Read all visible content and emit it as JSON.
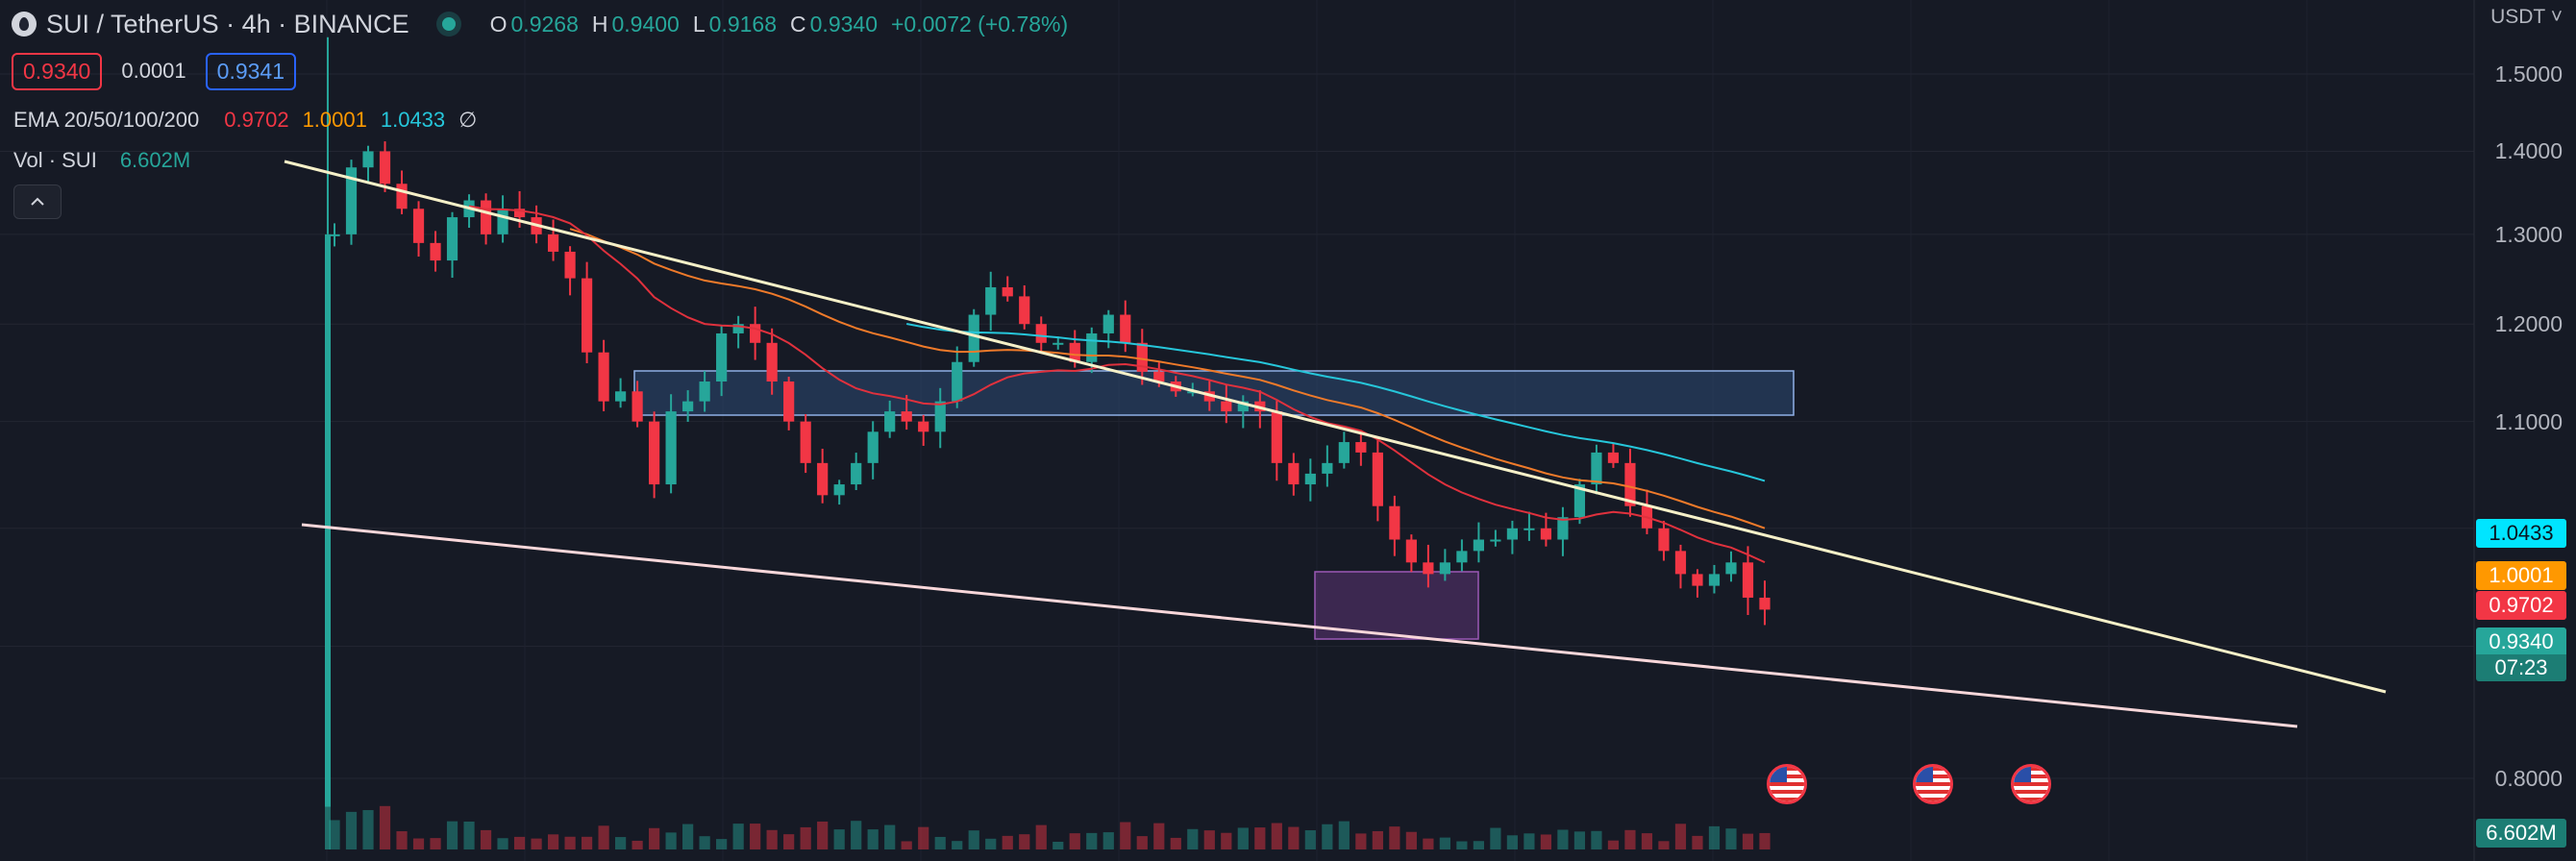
{
  "header": {
    "symbol_title": "SUI / TetherUS · 4h · BINANCE",
    "ohlc": {
      "o_label": "O",
      "o": "0.9268",
      "h_label": "H",
      "h": "0.9400",
      "l_label": "L",
      "l": "0.9168",
      "c_label": "C",
      "c": "0.9340",
      "change": "+0.0072 (+0.78%)"
    },
    "bid": "0.9340",
    "spread": "0.0001",
    "ask": "0.9341",
    "ema_label": "EMA 20/50/100/200",
    "ema20": "0.9702",
    "ema50": "1.0001",
    "ema100": "1.0433",
    "ema200": "∅",
    "vol_label": "Vol · SUI",
    "vol_value": "6.602M",
    "collapse_icon": "chevron-up-icon"
  },
  "axis": {
    "currency": "USDT",
    "labels": [
      "1.5000",
      "1.4000",
      "1.3000",
      "1.2000",
      "1.1000",
      "0.8000"
    ]
  },
  "price_tags": {
    "ema100": "1.0433",
    "ema50": "1.0001",
    "ema20": "0.9702",
    "last": "0.9340",
    "countdown": "07:23",
    "volume": "6.602M"
  },
  "colors": {
    "up": "#26a69a",
    "down": "#f23645",
    "ema20": "#f23645",
    "ema50": "#ff9800",
    "ema100": "#00bcd4",
    "bg": "#161a25",
    "zone_blue": "#2e4a75",
    "zone_purple": "#7b3f8a",
    "trend_upper": "#f5f0c8",
    "trend_lower": "#f8d7da"
  },
  "chart_data": {
    "type": "candlestick",
    "title": "SUI / TetherUS · 4h · BINANCE",
    "ylim": [
      0.78,
      1.55
    ],
    "y_scale": "log",
    "close_approx": [
      1.3,
      1.38,
      1.4,
      1.36,
      1.33,
      1.29,
      1.27,
      1.32,
      1.34,
      1.3,
      1.33,
      1.32,
      1.3,
      1.28,
      1.25,
      1.17,
      1.12,
      1.13,
      1.1,
      1.04,
      1.11,
      1.12,
      1.14,
      1.19,
      1.2,
      1.18,
      1.14,
      1.1,
      1.06,
      1.03,
      1.04,
      1.06,
      1.09,
      1.11,
      1.1,
      1.09,
      1.12,
      1.16,
      1.21,
      1.24,
      1.23,
      1.2,
      1.18,
      1.18,
      1.16,
      1.19,
      1.21,
      1.18,
      1.15,
      1.14,
      1.13,
      1.13,
      1.12,
      1.11,
      1.12,
      1.11,
      1.06,
      1.04,
      1.05,
      1.06,
      1.08,
      1.07,
      1.02,
      0.99,
      0.97,
      0.96,
      0.97,
      0.98,
      0.99,
      0.99,
      1.0,
      1.0,
      0.99,
      1.01,
      1.04,
      1.07,
      1.06,
      1.02,
      1.0,
      0.98,
      0.96,
      0.95,
      0.96,
      0.97,
      0.94,
      0.93
    ],
    "ema20_last": 0.9702,
    "ema50_last": 1.0001,
    "ema100_last": 1.0433,
    "last_price": 0.934,
    "volume_last": "6.602M"
  }
}
